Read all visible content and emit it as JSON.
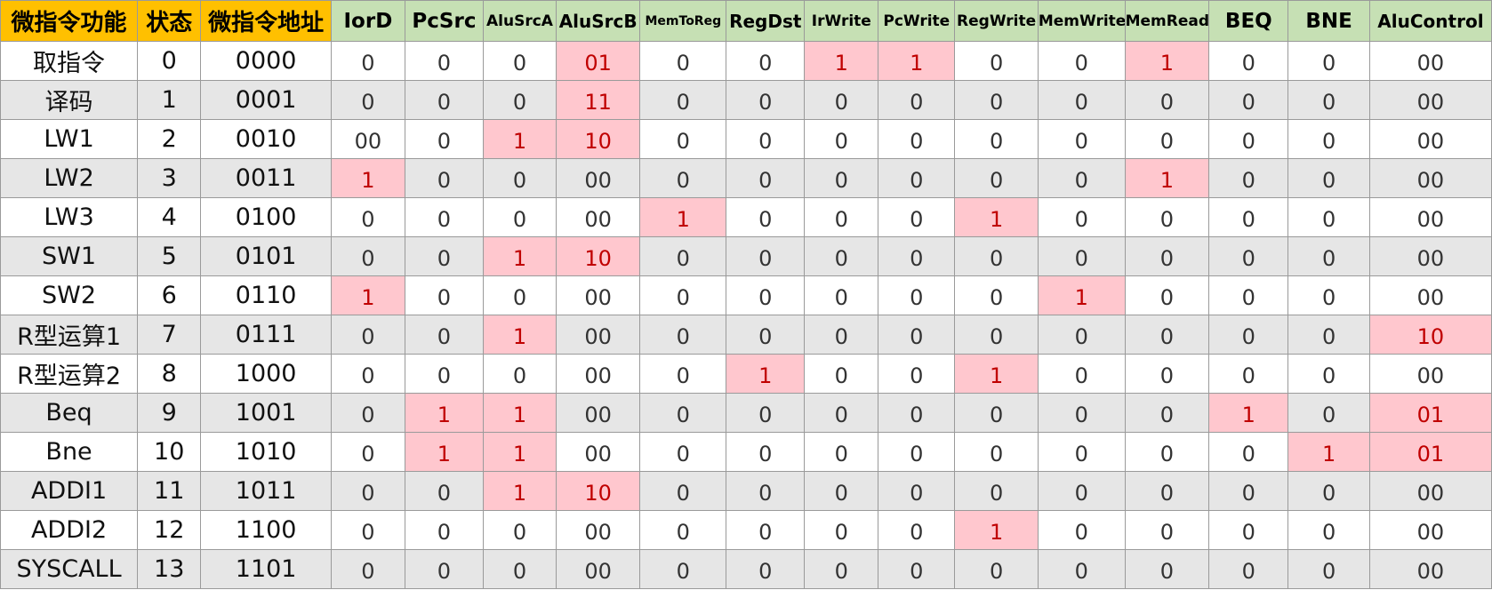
{
  "colors": {
    "header_primary_bg": "#ffc000",
    "header_signal_bg": "#c6e0b4",
    "highlight_bg": "#ffc7ce",
    "highlight_text": "#c00000",
    "stripe_bg": "#e6e6e6"
  },
  "table": {
    "headers": [
      "微指令功能",
      "状态",
      "微指令地址",
      "IorD",
      "PcSrc",
      "AluSrcA",
      "AluSrcB",
      "MemToReg",
      "RegDst",
      "IrWrite",
      "PcWrite",
      "RegWrite",
      "MemWrite",
      "MemRead",
      "BEQ",
      "BNE",
      "AluControl"
    ],
    "rows": [
      {
        "fn": "取指令",
        "state": "0",
        "addr": "0000",
        "signals": [
          "0",
          "0",
          "0",
          "01",
          "0",
          "0",
          "1",
          "1",
          "0",
          "0",
          "1",
          "0",
          "0",
          "00"
        ],
        "highlight": [
          false,
          false,
          false,
          true,
          false,
          false,
          true,
          true,
          false,
          false,
          true,
          false,
          false,
          false
        ]
      },
      {
        "fn": "译码",
        "state": "1",
        "addr": "0001",
        "signals": [
          "0",
          "0",
          "0",
          "11",
          "0",
          "0",
          "0",
          "0",
          "0",
          "0",
          "0",
          "0",
          "0",
          "00"
        ],
        "highlight": [
          false,
          false,
          false,
          true,
          false,
          false,
          false,
          false,
          false,
          false,
          false,
          false,
          false,
          false
        ]
      },
      {
        "fn": "LW1",
        "state": "2",
        "addr": "0010",
        "signals": [
          "00",
          "0",
          "1",
          "10",
          "0",
          "0",
          "0",
          "0",
          "0",
          "0",
          "0",
          "0",
          "0",
          "00"
        ],
        "highlight": [
          false,
          false,
          true,
          true,
          false,
          false,
          false,
          false,
          false,
          false,
          false,
          false,
          false,
          false
        ]
      },
      {
        "fn": "LW2",
        "state": "3",
        "addr": "0011",
        "signals": [
          "1",
          "0",
          "0",
          "00",
          "0",
          "0",
          "0",
          "0",
          "0",
          "0",
          "1",
          "0",
          "0",
          "00"
        ],
        "highlight": [
          true,
          false,
          false,
          false,
          false,
          false,
          false,
          false,
          false,
          false,
          true,
          false,
          false,
          false
        ]
      },
      {
        "fn": "LW3",
        "state": "4",
        "addr": "0100",
        "signals": [
          "0",
          "0",
          "0",
          "00",
          "1",
          "0",
          "0",
          "0",
          "1",
          "0",
          "0",
          "0",
          "0",
          "00"
        ],
        "highlight": [
          false,
          false,
          false,
          false,
          true,
          false,
          false,
          false,
          true,
          false,
          false,
          false,
          false,
          false
        ]
      },
      {
        "fn": "SW1",
        "state": "5",
        "addr": "0101",
        "signals": [
          "0",
          "0",
          "1",
          "10",
          "0",
          "0",
          "0",
          "0",
          "0",
          "0",
          "0",
          "0",
          "0",
          "00"
        ],
        "highlight": [
          false,
          false,
          true,
          true,
          false,
          false,
          false,
          false,
          false,
          false,
          false,
          false,
          false,
          false
        ]
      },
      {
        "fn": "SW2",
        "state": "6",
        "addr": "0110",
        "signals": [
          "1",
          "0",
          "0",
          "00",
          "0",
          "0",
          "0",
          "0",
          "0",
          "1",
          "0",
          "0",
          "0",
          "00"
        ],
        "highlight": [
          true,
          false,
          false,
          false,
          false,
          false,
          false,
          false,
          false,
          true,
          false,
          false,
          false,
          false
        ]
      },
      {
        "fn": "R型运算1",
        "state": "7",
        "addr": "0111",
        "signals": [
          "0",
          "0",
          "1",
          "00",
          "0",
          "0",
          "0",
          "0",
          "0",
          "0",
          "0",
          "0",
          "0",
          "10"
        ],
        "highlight": [
          false,
          false,
          true,
          false,
          false,
          false,
          false,
          false,
          false,
          false,
          false,
          false,
          false,
          true
        ]
      },
      {
        "fn": "R型运算2",
        "state": "8",
        "addr": "1000",
        "signals": [
          "0",
          "0",
          "0",
          "00",
          "0",
          "1",
          "0",
          "0",
          "1",
          "0",
          "0",
          "0",
          "0",
          "00"
        ],
        "highlight": [
          false,
          false,
          false,
          false,
          false,
          true,
          false,
          false,
          true,
          false,
          false,
          false,
          false,
          false
        ]
      },
      {
        "fn": "Beq",
        "state": "9",
        "addr": "1001",
        "signals": [
          "0",
          "1",
          "1",
          "00",
          "0",
          "0",
          "0",
          "0",
          "0",
          "0",
          "0",
          "1",
          "0",
          "01"
        ],
        "highlight": [
          false,
          true,
          true,
          false,
          false,
          false,
          false,
          false,
          false,
          false,
          false,
          true,
          false,
          true
        ]
      },
      {
        "fn": "Bne",
        "state": "10",
        "addr": "1010",
        "signals": [
          "0",
          "1",
          "1",
          "00",
          "0",
          "0",
          "0",
          "0",
          "0",
          "0",
          "0",
          "0",
          "1",
          "01"
        ],
        "highlight": [
          false,
          true,
          true,
          false,
          false,
          false,
          false,
          false,
          false,
          false,
          false,
          false,
          true,
          true
        ]
      },
      {
        "fn": "ADDI1",
        "state": "11",
        "addr": "1011",
        "signals": [
          "0",
          "0",
          "1",
          "10",
          "0",
          "0",
          "0",
          "0",
          "0",
          "0",
          "0",
          "0",
          "0",
          "00"
        ],
        "highlight": [
          false,
          false,
          true,
          true,
          false,
          false,
          false,
          false,
          false,
          false,
          false,
          false,
          false,
          false
        ]
      },
      {
        "fn": "ADDI2",
        "state": "12",
        "addr": "1100",
        "signals": [
          "0",
          "0",
          "0",
          "00",
          "0",
          "0",
          "0",
          "0",
          "1",
          "0",
          "0",
          "0",
          "0",
          "00"
        ],
        "highlight": [
          false,
          false,
          false,
          false,
          false,
          false,
          false,
          false,
          true,
          false,
          false,
          false,
          false,
          false
        ]
      },
      {
        "fn": "SYSCALL",
        "state": "13",
        "addr": "1101",
        "signals": [
          "0",
          "0",
          "0",
          "00",
          "0",
          "0",
          "0",
          "0",
          "0",
          "0",
          "0",
          "0",
          "0",
          "00"
        ],
        "highlight": [
          false,
          false,
          false,
          false,
          false,
          false,
          false,
          false,
          false,
          false,
          false,
          false,
          false,
          false
        ]
      }
    ]
  }
}
